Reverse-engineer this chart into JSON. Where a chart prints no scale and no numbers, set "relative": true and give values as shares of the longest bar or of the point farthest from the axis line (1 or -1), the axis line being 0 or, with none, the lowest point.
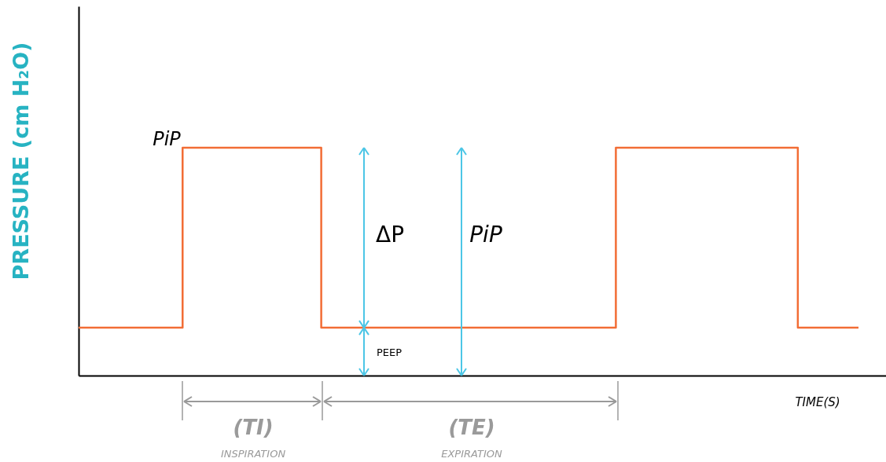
{
  "chart_data": {
    "type": "step",
    "relative": true,
    "ylabel": "PRESSURE (cm H₂O)",
    "xlabel": "TIME(S)",
    "categories": [
      null,
      null,
      null,
      null,
      null,
      null,
      null,
      null,
      null,
      null,
      null,
      null,
      null,
      null,
      null,
      null,
      null,
      null,
      null,
      null,
      null,
      null,
      null,
      null,
      null,
      null,
      null,
      null,
      null,
      null,
      null,
      null,
      null,
      null,
      null,
      null,
      null,
      null,
      null,
      null,
      null,
      null,
      null,
      null,
      null,
      null,
      null,
      null,
      null,
      null,
      null,
      null,
      null,
      null,
      null,
      null,
      null,
      null,
      null,
      null,
      null,
      null,
      null,
      null,
      null,
      null,
      null,
      null,
      null,
      null,
      null,
      null,
      null,
      null,
      null,
      null,
      null,
      null,
      null,
      null,
      null,
      null,
      null,
      null,
      null,
      null,
      null,
      null,
      null,
      null,
      null
    ],
    "series": [
      {
        "color": "#f26d35",
        "values": [
          0.21,
          0.21,
          0.21,
          0.21,
          0.21,
          0.21,
          0.21,
          0.21,
          0.21,
          0.21,
          0.21,
          0.21,
          1,
          1,
          1,
          1,
          1,
          1,
          1,
          1,
          1,
          1,
          1,
          1,
          1,
          1,
          1,
          1,
          0.21,
          0.21,
          0.21,
          0.21,
          0.21,
          0.21,
          0.21,
          0.21,
          0.21,
          0.21,
          0.21,
          0.21,
          0.21,
          0.21,
          0.21,
          0.21,
          0.21,
          0.21,
          0.21,
          0.21,
          0.21,
          0.21,
          0.21,
          0.21,
          0.21,
          0.21,
          0.21,
          0.21,
          0.21,
          0.21,
          0.21,
          0.21,
          0.21,
          0.21,
          1,
          1,
          1,
          1,
          1,
          1,
          1,
          1,
          1,
          1,
          1,
          1,
          1,
          1,
          1,
          1,
          1,
          1,
          1,
          1,
          1,
          0.21,
          0.21,
          0.21,
          0.21,
          0.21,
          0.21,
          0.21,
          0.21
        ]
      }
    ],
    "annotations": [
      "PiP",
      "ΔP",
      "PiP",
      "PEEP",
      "(TI)",
      "INSPIRATION",
      "(TE)",
      "EXPIRATION"
    ]
  }
}
